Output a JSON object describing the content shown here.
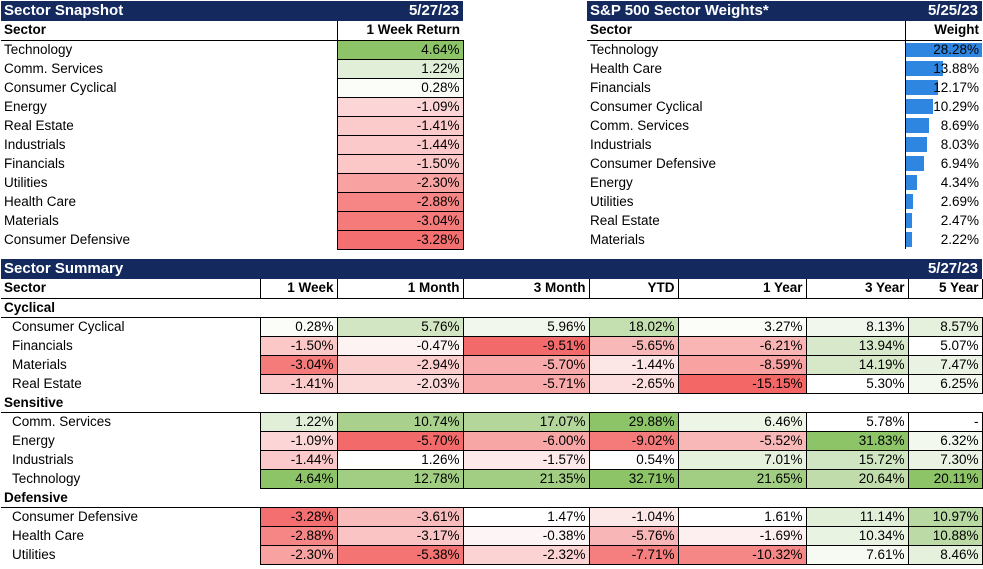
{
  "snapshot": {
    "title": "Sector Snapshot",
    "date": "5/27/23",
    "col_sector": "Sector",
    "col_return": "1 Week Return",
    "rows": [
      {
        "sector": "Technology",
        "ret": "4.64%",
        "color": "#8dc468"
      },
      {
        "sector": "Comm. Services",
        "ret": "1.22%",
        "color": "#e2efd8"
      },
      {
        "sector": "Consumer Cyclical",
        "ret": "0.28%",
        "color": "#fbfdf9"
      },
      {
        "sector": "Energy",
        "ret": "-1.09%",
        "color": "#fcd6d6"
      },
      {
        "sector": "Real Estate",
        "ret": "-1.41%",
        "color": "#fbcaca"
      },
      {
        "sector": "Industrials",
        "ret": "-1.44%",
        "color": "#fbc9c9"
      },
      {
        "sector": "Financials",
        "ret": "-1.50%",
        "color": "#fbc7c7"
      },
      {
        "sector": "Utilities",
        "ret": "-2.30%",
        "color": "#f8a2a2"
      },
      {
        "sector": "Health Care",
        "ret": "-2.88%",
        "color": "#f68585"
      },
      {
        "sector": "Materials",
        "ret": "-3.04%",
        "color": "#f57b7b"
      },
      {
        "sector": "Consumer Defensive",
        "ret": "-3.28%",
        "color": "#f46f6f"
      }
    ]
  },
  "weights": {
    "title": "S&P 500 Sector Weights*",
    "date": "5/25/23",
    "col_sector": "Sector",
    "col_weight": "Weight",
    "bar_color": "#2f86e0",
    "rows": [
      {
        "sector": "Technology",
        "weight": "28.28%",
        "pct": 28.28
      },
      {
        "sector": "Health Care",
        "weight": "13.88%",
        "pct": 13.88
      },
      {
        "sector": "Financials",
        "weight": "12.17%",
        "pct": 12.17
      },
      {
        "sector": "Consumer Cyclical",
        "weight": "10.29%",
        "pct": 10.29
      },
      {
        "sector": "Comm. Services",
        "weight": "8.69%",
        "pct": 8.69
      },
      {
        "sector": "Industrials",
        "weight": "8.03%",
        "pct": 8.03
      },
      {
        "sector": "Consumer Defensive",
        "weight": "6.94%",
        "pct": 6.94
      },
      {
        "sector": "Energy",
        "weight": "4.34%",
        "pct": 4.34
      },
      {
        "sector": "Utilities",
        "weight": "2.69%",
        "pct": 2.69
      },
      {
        "sector": "Real Estate",
        "weight": "2.47%",
        "pct": 2.47
      },
      {
        "sector": "Materials",
        "weight": "2.22%",
        "pct": 2.22
      }
    ]
  },
  "summary": {
    "title": "Sector Summary",
    "date": "5/27/23",
    "columns": [
      "Sector",
      "1 Week",
      "1 Month",
      "3 Month",
      "YTD",
      "1 Year",
      "3 Year",
      "5 Year"
    ],
    "groups": [
      {
        "name": "Cyclical",
        "rows": [
          {
            "sector": "Consumer Cyclical",
            "vals": [
              "0.28%",
              "5.76%",
              "5.96%",
              "18.02%",
              "3.27%",
              "8.13%",
              "8.57%"
            ],
            "colors": [
              "#fbfdf9",
              "#d3e6c4",
              "#f1f7ec",
              "#c4dfb0",
              "#fbfdf9",
              "#f1f7ec",
              "#e6f1dd"
            ]
          },
          {
            "sector": "Financials",
            "vals": [
              "-1.50%",
              "-0.47%",
              "-9.51%",
              "-5.65%",
              "-6.21%",
              "13.94%",
              "5.07%"
            ],
            "colors": [
              "#fbc7c7",
              "#fdf3f3",
              "#f36a6a",
              "#f8b8b8",
              "#f9b4b4",
              "#d8e9cb",
              "#ffffff"
            ]
          },
          {
            "sector": "Materials",
            "vals": [
              "-3.04%",
              "-2.94%",
              "-5.70%",
              "-1.44%",
              "-8.59%",
              "14.19%",
              "7.47%"
            ],
            "colors": [
              "#f57b7b",
              "#fbcdcd",
              "#f8a9a9",
              "#fde6e6",
              "#f8a2a2",
              "#d6e8c8",
              "#eaf3e3"
            ]
          },
          {
            "sector": "Real Estate",
            "vals": [
              "-1.41%",
              "-2.03%",
              "-5.71%",
              "-2.65%",
              "-15.15%",
              "5.30%",
              "6.25%"
            ],
            "colors": [
              "#fbcaca",
              "#fbd9d9",
              "#f8a9a9",
              "#fcdede",
              "#f46767",
              "#ffffff",
              "#f2f8ee"
            ]
          }
        ]
      },
      {
        "name": "Sensitive",
        "rows": [
          {
            "sector": "Comm. Services",
            "vals": [
              "1.22%",
              "10.74%",
              "17.07%",
              "29.88%",
              "6.46%",
              "5.78%",
              "-"
            ],
            "colors": [
              "#e2efd8",
              "#a9d18d",
              "#b4d69b",
              "#8dc468",
              "#edf5e7",
              "#ffffff",
              "#ffffff"
            ]
          },
          {
            "sector": "Energy",
            "vals": [
              "-1.09%",
              "-5.70%",
              "-6.00%",
              "-9.02%",
              "-5.52%",
              "31.83%",
              "6.32%"
            ],
            "colors": [
              "#fcd6d6",
              "#f36a6a",
              "#f8a5a5",
              "#f57b7b",
              "#f9b8b8",
              "#8dc468",
              "#f2f8ee"
            ]
          },
          {
            "sector": "Industrials",
            "vals": [
              "-1.44%",
              "1.26%",
              "-1.57%",
              "0.54%",
              "7.01%",
              "15.72%",
              "7.30%"
            ],
            "colors": [
              "#fbc9c9",
              "#ffffff",
              "#fde9e9",
              "#ffffff",
              "#e6f1dd",
              "#d0e5c1",
              "#eaf3e3"
            ]
          },
          {
            "sector": "Technology",
            "vals": [
              "4.64%",
              "12.78%",
              "21.35%",
              "32.71%",
              "21.65%",
              "20.64%",
              "20.11%"
            ],
            "colors": [
              "#8dc468",
              "#a2ce84",
              "#a2ce84",
              "#8dc468",
              "#a2ce84",
              "#c0dcab",
              "#8dc468"
            ]
          }
        ]
      },
      {
        "name": "Defensive",
        "rows": [
          {
            "sector": "Consumer Defensive",
            "vals": [
              "-3.28%",
              "-3.61%",
              "1.47%",
              "-1.04%",
              "1.61%",
              "11.14%",
              "10.97%"
            ],
            "colors": [
              "#f46f6f",
              "#f9bcbc",
              "#ffffff",
              "#fde8e8",
              "#ffffff",
              "#e2efd8",
              "#b9d9a2"
            ]
          },
          {
            "sector": "Health Care",
            "vals": [
              "-2.88%",
              "-3.17%",
              "-0.38%",
              "-5.76%",
              "-1.69%",
              "10.34%",
              "10.88%"
            ],
            "colors": [
              "#f68585",
              "#fac4c4",
              "#fdf5f5",
              "#f8b6b6",
              "#fdefef",
              "#e9f3e2",
              "#bbdaa5"
            ]
          },
          {
            "sector": "Utilities",
            "vals": [
              "-2.30%",
              "-5.38%",
              "-2.32%",
              "-7.71%",
              "-10.32%",
              "7.61%",
              "8.46%"
            ],
            "colors": [
              "#f8a2a2",
              "#f47474",
              "#fbd3d3",
              "#f57e7e",
              "#f58787",
              "#f6faf3",
              "#e6f1dd"
            ]
          }
        ]
      }
    ]
  }
}
